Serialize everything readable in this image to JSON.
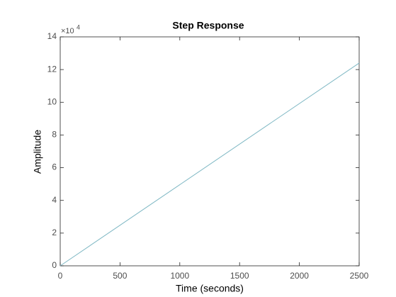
{
  "chart_data": {
    "type": "line",
    "title": "Step Response",
    "x_label": "Time (seconds)",
    "y_label": "Amplitude",
    "y_multiplier": {
      "base": "×10",
      "exponent": "4"
    },
    "x": [
      0,
      2500
    ],
    "series": [
      {
        "color": "#7fb8c4",
        "values": [
          0,
          12.4
        ]
      }
    ],
    "xlim": [
      0,
      2500
    ],
    "xticks": [
      0,
      500,
      1000,
      1500,
      2000,
      2500
    ],
    "ylim": [
      0,
      14
    ],
    "yticks": [
      0,
      2,
      4,
      6,
      8,
      10,
      12,
      14
    ],
    "grid": false,
    "box": true
  }
}
